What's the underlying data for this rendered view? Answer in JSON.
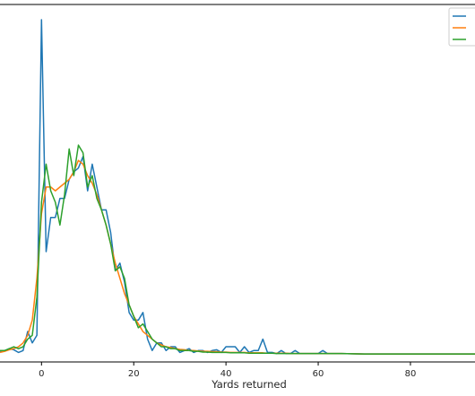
{
  "chart_data": {
    "type": "line",
    "title": "",
    "xlabel": "Yards returned",
    "ylabel": "",
    "xlim": [
      -9,
      94
    ],
    "ylim": [
      -0.002,
      0.092
    ],
    "xticks": [
      0,
      20,
      40,
      60,
      80
    ],
    "legend_position": "top-right",
    "grid": false,
    "series": [
      {
        "name": "",
        "color": "#1f77b4",
        "x": [
          -9,
          -8,
          -7,
          -6,
          -5,
          -4,
          -3,
          -2,
          -1,
          0,
          1,
          2,
          3,
          4,
          5,
          6,
          7,
          8,
          9,
          10,
          11,
          12,
          13,
          14,
          15,
          16,
          17,
          18,
          19,
          20,
          21,
          22,
          23,
          24,
          25,
          26,
          27,
          28,
          29,
          30,
          31,
          32,
          33,
          34,
          35,
          36,
          37,
          38,
          39,
          40,
          41,
          42,
          43,
          44,
          45,
          46,
          47,
          48,
          49,
          50,
          51,
          52,
          53,
          54,
          55,
          56,
          57,
          58,
          59,
          60,
          61,
          62,
          63,
          64,
          65,
          70,
          75,
          80,
          85,
          90,
          94
        ],
        "y": [
          0.0008,
          0.001,
          0.0015,
          0.0012,
          0.0005,
          0.001,
          0.006,
          0.003,
          0.005,
          0.088,
          0.027,
          0.036,
          0.036,
          0.041,
          0.041,
          0.046,
          0.048,
          0.049,
          0.052,
          0.043,
          0.05,
          0.044,
          0.038,
          0.038,
          0.032,
          0.022,
          0.024,
          0.019,
          0.011,
          0.009,
          0.009,
          0.011,
          0.004,
          0.001,
          0.003,
          0.003,
          0.001,
          0.002,
          0.002,
          0.0005,
          0.001,
          0.0015,
          0.0005,
          0.001,
          0.001,
          0.0005,
          0.001,
          0.0012,
          0.0005,
          0.002,
          0.002,
          0.002,
          0.0005,
          0.002,
          0.0005,
          0.001,
          0.001,
          0.004,
          0.0005,
          0.0005,
          0.0002,
          0.001,
          0.0002,
          0.0002,
          0.001,
          0.0002,
          0.0002,
          0.0002,
          0.0002,
          0.0002,
          0.001,
          0.0002,
          0.0002,
          0.0002,
          0.0002,
          0.0001,
          0.0001,
          0.0001,
          0.0001,
          0.0001,
          0.0001
        ]
      },
      {
        "name": "",
        "color": "#ff7f0e",
        "x": [
          -9,
          -8,
          -7,
          -6,
          -5,
          -4,
          -3,
          -2,
          -1,
          0,
          1,
          2,
          3,
          4,
          5,
          6,
          7,
          8,
          9,
          10,
          11,
          12,
          13,
          14,
          15,
          16,
          17,
          18,
          19,
          20,
          21,
          22,
          23,
          24,
          25,
          26,
          27,
          28,
          29,
          30,
          31,
          32,
          33,
          34,
          35,
          36,
          37,
          38,
          39,
          40,
          41,
          42,
          43,
          44,
          45,
          46,
          47,
          48,
          49,
          50,
          51,
          52,
          53,
          54,
          55,
          56,
          57,
          58,
          59,
          60,
          61,
          62,
          63,
          64,
          65,
          70,
          75,
          80,
          85,
          90,
          94
        ],
        "y": [
          0.0005,
          0.0008,
          0.0012,
          0.0015,
          0.002,
          0.003,
          0.005,
          0.009,
          0.02,
          0.037,
          0.044,
          0.044,
          0.043,
          0.044,
          0.045,
          0.046,
          0.048,
          0.051,
          0.05,
          0.047,
          0.045,
          0.042,
          0.038,
          0.034,
          0.029,
          0.024,
          0.02,
          0.016,
          0.013,
          0.01,
          0.008,
          0.006,
          0.005,
          0.004,
          0.003,
          0.0025,
          0.002,
          0.0018,
          0.0015,
          0.0013,
          0.0012,
          0.001,
          0.001,
          0.0009,
          0.0008,
          0.0008,
          0.0007,
          0.0007,
          0.0006,
          0.0006,
          0.0005,
          0.0005,
          0.0005,
          0.0005,
          0.0004,
          0.0004,
          0.0004,
          0.0004,
          0.0003,
          0.0003,
          0.0003,
          0.0003,
          0.0003,
          0.0002,
          0.0002,
          0.0002,
          0.0002,
          0.0002,
          0.0002,
          0.0002,
          0.0002,
          0.0002,
          0.0002,
          0.0002,
          0.0002,
          0.0001,
          0.0001,
          0.0001,
          0.0001,
          0.0001,
          0.0001
        ]
      },
      {
        "name": "",
        "color": "#2ca02c",
        "x": [
          -9,
          -8,
          -7,
          -6,
          -5,
          -4,
          -3,
          -2,
          -1,
          0,
          1,
          2,
          3,
          4,
          5,
          6,
          7,
          8,
          9,
          10,
          11,
          12,
          13,
          14,
          15,
          16,
          17,
          18,
          19,
          20,
          21,
          22,
          23,
          24,
          25,
          26,
          27,
          28,
          29,
          30,
          31,
          32,
          33,
          34,
          35,
          36,
          37,
          38,
          39,
          40,
          41,
          42,
          43,
          44,
          45,
          46,
          47,
          48,
          49,
          50,
          51,
          52,
          53,
          54,
          55,
          56,
          57,
          58,
          59,
          60,
          61,
          62,
          63,
          64,
          65,
          70,
          75,
          80,
          85,
          90,
          94
        ],
        "y": [
          0.001,
          0.001,
          0.0015,
          0.002,
          0.0015,
          0.002,
          0.004,
          0.005,
          0.015,
          0.04,
          0.05,
          0.043,
          0.04,
          0.034,
          0.042,
          0.054,
          0.047,
          0.055,
          0.053,
          0.044,
          0.047,
          0.041,
          0.038,
          0.034,
          0.029,
          0.022,
          0.023,
          0.02,
          0.013,
          0.01,
          0.007,
          0.008,
          0.006,
          0.004,
          0.003,
          0.002,
          0.002,
          0.0015,
          0.0015,
          0.001,
          0.001,
          0.001,
          0.0008,
          0.0008,
          0.0006,
          0.0006,
          0.0005,
          0.0005,
          0.0005,
          0.0005,
          0.0004,
          0.0004,
          0.0004,
          0.0004,
          0.0003,
          0.0003,
          0.0003,
          0.0003,
          0.0003,
          0.0003,
          0.0002,
          0.0002,
          0.0002,
          0.0002,
          0.0002,
          0.0002,
          0.0002,
          0.0002,
          0.0002,
          0.0002,
          0.0002,
          0.0002,
          0.0002,
          0.0002,
          0.0002,
          0.0001,
          0.0001,
          0.0001,
          0.0001,
          0.0001,
          0.0001
        ]
      }
    ]
  }
}
